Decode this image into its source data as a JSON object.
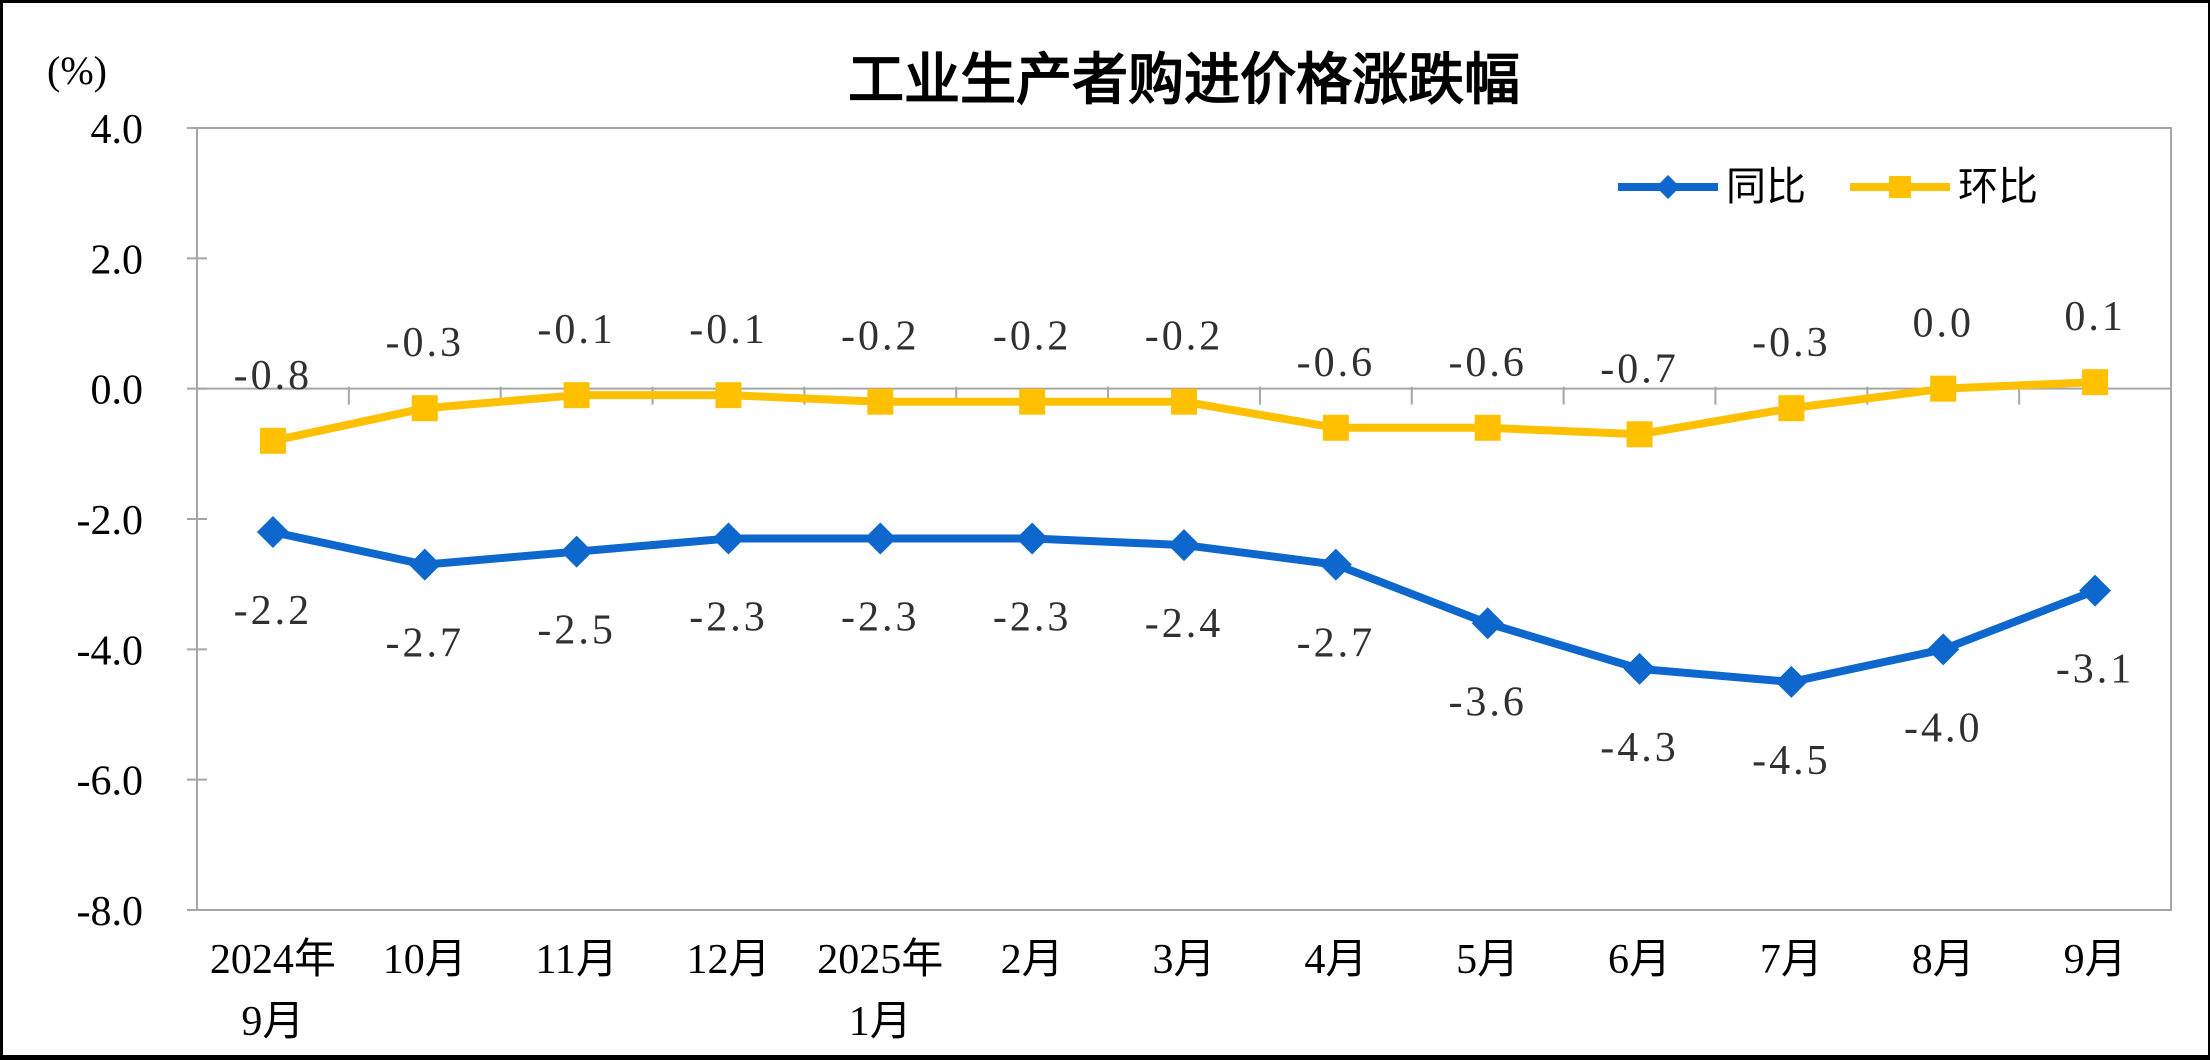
{
  "chart": {
    "title": "工业生产者购进价格涨跌幅",
    "unit_label": "(%)",
    "colors": {
      "tongbi_blue": "#0E67CC",
      "huanbi_yellow": "#FFC000",
      "axis_gray": "#A6A6A6",
      "data_label_text": "#303030",
      "tick_label_text": "#000000"
    }
  },
  "chart_data": {
    "type": "line",
    "title": "工业生产者购进价格涨跌幅",
    "ylabel": "(%)",
    "xlabel": "",
    "categories": [
      "2024年\n9月",
      "10月",
      "11月",
      "12月",
      "2025年\n1月",
      "2月",
      "3月",
      "4月",
      "5月",
      "6月",
      "7月",
      "8月",
      "9月"
    ],
    "series": [
      {
        "name": "同比",
        "color": "#0E67CC",
        "marker": "diamond",
        "label_position": "below",
        "values": [
          -2.2,
          -2.7,
          -2.5,
          -2.3,
          -2.3,
          -2.3,
          -2.4,
          -2.7,
          -3.6,
          -4.3,
          -4.5,
          -4.0,
          -3.1
        ],
        "labels": [
          "-2.2",
          "-2.7",
          "-2.5",
          "-2.3",
          "-2.3",
          "-2.3",
          "-2.4",
          "-2.7",
          "-3.6",
          "-4.3",
          "-4.5",
          "-4.0",
          "-3.1"
        ]
      },
      {
        "name": "环比",
        "color": "#FFC000",
        "marker": "square",
        "label_position": "above",
        "values": [
          -0.8,
          -0.3,
          -0.1,
          -0.1,
          -0.2,
          -0.2,
          -0.2,
          -0.6,
          -0.6,
          -0.7,
          -0.3,
          0.0,
          0.1
        ],
        "labels": [
          "-0.8",
          "-0.3",
          "-0.1",
          "-0.1",
          "-0.2",
          "-0.2",
          "-0.2",
          "-0.6",
          "-0.6",
          "-0.7",
          "-0.3",
          "0.0",
          "0.1"
        ]
      }
    ],
    "ylim": [
      -8.0,
      4.0
    ],
    "ytick_values": [
      4.0,
      2.0,
      0.0,
      -2.0,
      -4.0,
      -6.0,
      -8.0
    ],
    "ytick_labels": [
      "4.0",
      "2.0",
      "0.0",
      "-2.0",
      "-4.0",
      "-6.0",
      "-8.0"
    ],
    "grid": false,
    "zero_axis_line": true,
    "legend_position": "top-right-inside"
  }
}
